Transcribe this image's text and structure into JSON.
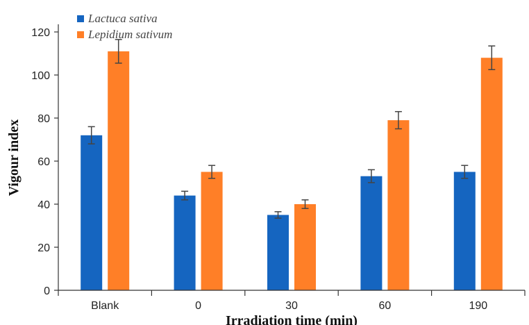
{
  "chart_data": {
    "type": "bar",
    "categories": [
      "Blank",
      "0",
      "30",
      "60",
      "190"
    ],
    "series": [
      {
        "name": "Lactuca sativa",
        "color": "#1565C0",
        "values": [
          72,
          44,
          35,
          53,
          55
        ],
        "errors": [
          4,
          2,
          1.5,
          3,
          3
        ]
      },
      {
        "name": "Lepidium sativum",
        "color": "#FF7F27",
        "values": [
          111,
          55,
          40,
          79,
          108
        ],
        "errors": [
          5.5,
          3,
          2,
          4,
          5.5
        ]
      }
    ],
    "xlabel": "Irradiation  time (min)",
    "ylabel": "Vigour index",
    "ylim": [
      0,
      120
    ],
    "yticks": [
      0,
      20,
      40,
      60,
      80,
      100,
      120
    ],
    "grid": false,
    "legend_position": "top-left"
  }
}
